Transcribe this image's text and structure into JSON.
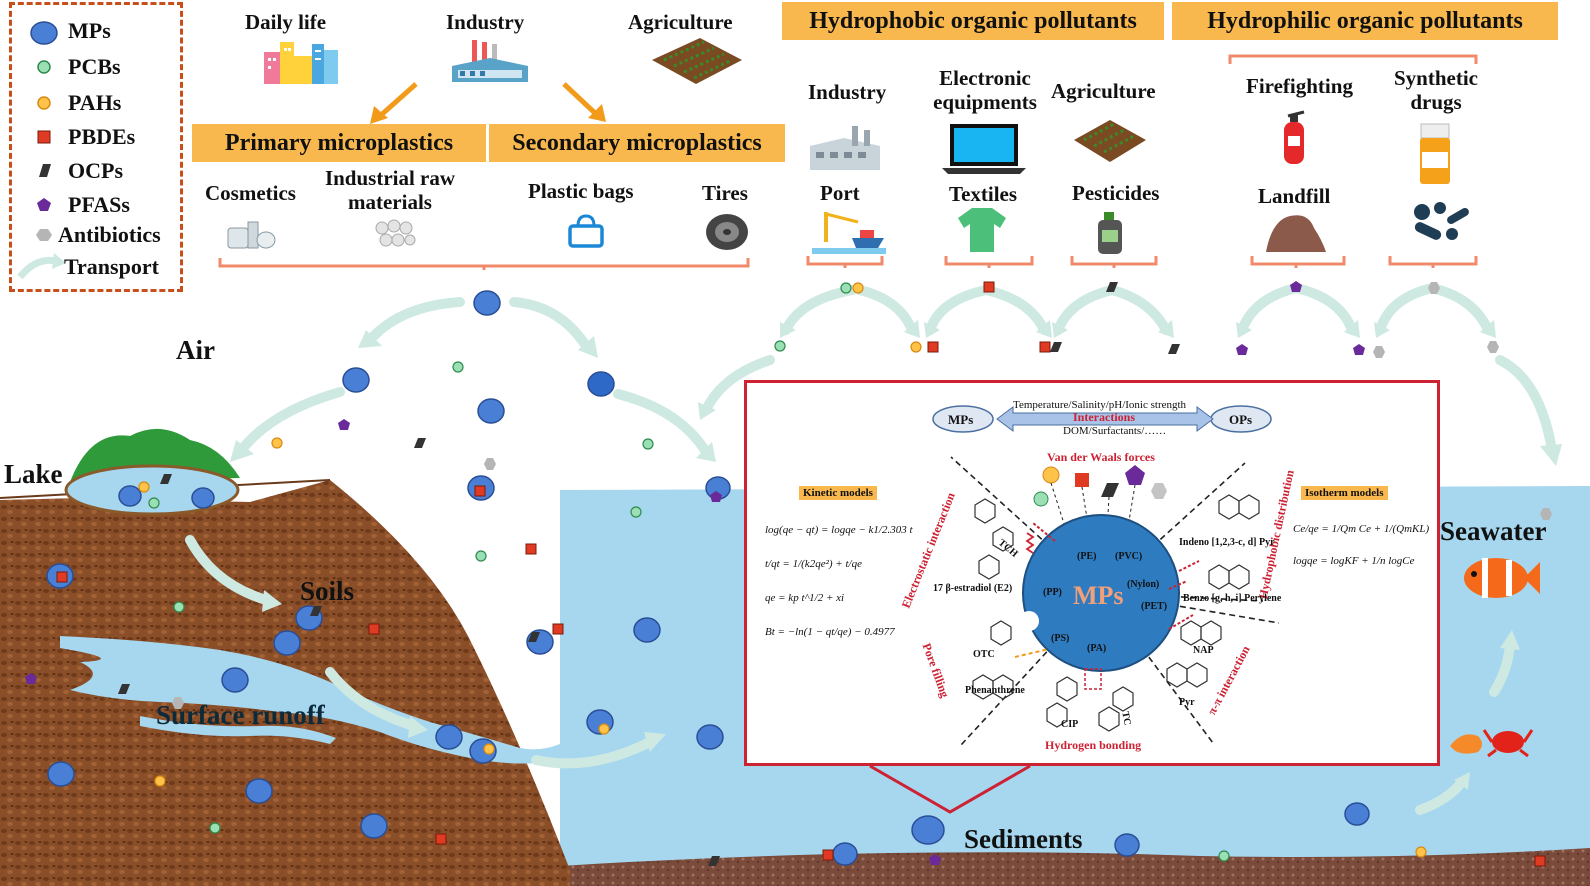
{
  "legend": {
    "items": [
      {
        "label": "MPs",
        "shape": "mp-circle",
        "color": "#4a7fd6"
      },
      {
        "label": "PCBs",
        "shape": "small-circle",
        "color": "#9be0b4"
      },
      {
        "label": "PAHs",
        "shape": "small-circle",
        "color": "#ffc34a"
      },
      {
        "label": "PBDEs",
        "shape": "square",
        "color": "#e03b22"
      },
      {
        "label": "OCPs",
        "shape": "parallelogram",
        "color": "#333333"
      },
      {
        "label": "PFASs",
        "shape": "pentagon",
        "color": "#6a2a9a"
      },
      {
        "label": "Antibiotics",
        "shape": "hexagon",
        "color": "#b5b5b5"
      },
      {
        "label": "Transport",
        "shape": "arrow",
        "color": "#cde9e2"
      }
    ]
  },
  "mp_sources": {
    "daily_life": "Daily life",
    "industry": "Industry",
    "agriculture": "Agriculture",
    "primary": "Primary microplastics",
    "secondary": "Secondary microplastics",
    "cosmetics": "Cosmetics",
    "industrial_raw_materials": "Industrial raw materials",
    "plastic_bags": "Plastic bags",
    "tires": "Tires"
  },
  "hydrophobic": {
    "header": "Hydrophobic organic pollutants",
    "industry": "Industry",
    "electronic_equipments": "Electronic equipments",
    "agriculture": "Agriculture",
    "port": "Port",
    "textiles": "Textiles",
    "pesticides": "Pesticides"
  },
  "hydrophilic": {
    "header": "Hydrophilic organic pollutants",
    "firefighting": "Firefighting",
    "synthetic_drugs": "Synthetic drugs",
    "landfill": "Landfill"
  },
  "environment": {
    "air": "Air",
    "lake": "Lake",
    "soils": "Soils",
    "surface_runoff": "Surface runoff",
    "seawater": "Seawater",
    "sediments": "Sediments"
  },
  "inset": {
    "factors_top": "Temperature/Salinity/pH/Ionic strength",
    "interactions": "Interactions",
    "factors_bottom": "DOM/Surfactants/……",
    "mps": "MPs",
    "ops": "OPs",
    "van_der_waals": "Van der Waals forces",
    "electrostatic": "Electrostatic interaction",
    "hydrophobic_distribution": "Hydrophobic distribution",
    "pore_filling": "Pore filling",
    "pi_pi": "π-π interaction",
    "hydrogen_bonding": "Hydrogen bonding",
    "kinetic_models": "Kinetic models",
    "isotherm_models": "Isotherm models",
    "center_label": "MPs",
    "polymers": [
      "(PE)",
      "(PVC)",
      "(PP)",
      "(Nylon)",
      "(PET)",
      "(PS)",
      "(PA)"
    ],
    "chemicals": [
      "TCH",
      "17 β-estradiol (E2)",
      "OTC",
      "Phenanthrene",
      "CIP",
      "TC",
      "Indeno [1,2,3-c, d] Pyr",
      "Benzo [g, h, i] Perylene",
      "NAP",
      "Pyr"
    ],
    "kinetic_equations": [
      "log(qe − qt) = logqe − k1/2.303 t",
      "t/qt = 1/(k2qe²) + t/qe",
      "qe = kp t^1/2 + xi",
      "Bt = −ln(1 − qt/qe) − 0.4977"
    ],
    "isotherm_equations": [
      "Ce/qe = 1/Qm Ce + 1/(QmKL)",
      "logqe = logKF + 1/n logCe"
    ]
  }
}
